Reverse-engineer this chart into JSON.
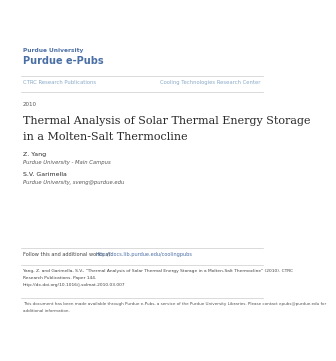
{
  "page_bg": "#ffffff",
  "university_line1": "Purdue University",
  "university_line2": "Purdue e-Pubs",
  "university_color": "#4a6fa5",
  "nav_left": "CTRC Research Publications",
  "nav_right": "Cooling Technologies Research Center",
  "nav_color": "#8aaac8",
  "nav_line_color": "#cccccc",
  "year": "2010",
  "title_line1": "Thermal Analysis of Solar Thermal Energy Storage",
  "title_line2": "in a Molten-Salt Thermocline",
  "title_color": "#2a2a2a",
  "author1_name": "Z. Yang",
  "author1_affil": "Purdue University - Main Campus",
  "author2_name": "S.V. Garimella",
  "author2_email": "Purdue University, sveng@purdue.edu",
  "author_color": "#2a2a2a",
  "affil_color": "#555555",
  "follow_prefix": "Follow this and additional works at: ",
  "follow_link": "http://docs.lib.purdue.edu/coolingpubs",
  "follow_color": "#444444",
  "link_color": "#4a6fa5",
  "citation_line1": "Yang, Z. and Garimella, S.V., \"Thermal Analysis of Solar Thermal Energy Storage in a Molten-Salt Thermocline\" (2010). CTRC",
  "citation_line2": "Research Publications. Paper 144.",
  "citation_line3": "http://dx.doi.org/10.1016/j.solmat.2010.03.007",
  "citation_color": "#444444",
  "footer_line1": "This document has been made available through Purdue e-Pubs, a service of the Purdue University Libraries. Please contact epubs@purdue.edu for",
  "footer_line2": "additional information.",
  "footer_color": "#555555"
}
